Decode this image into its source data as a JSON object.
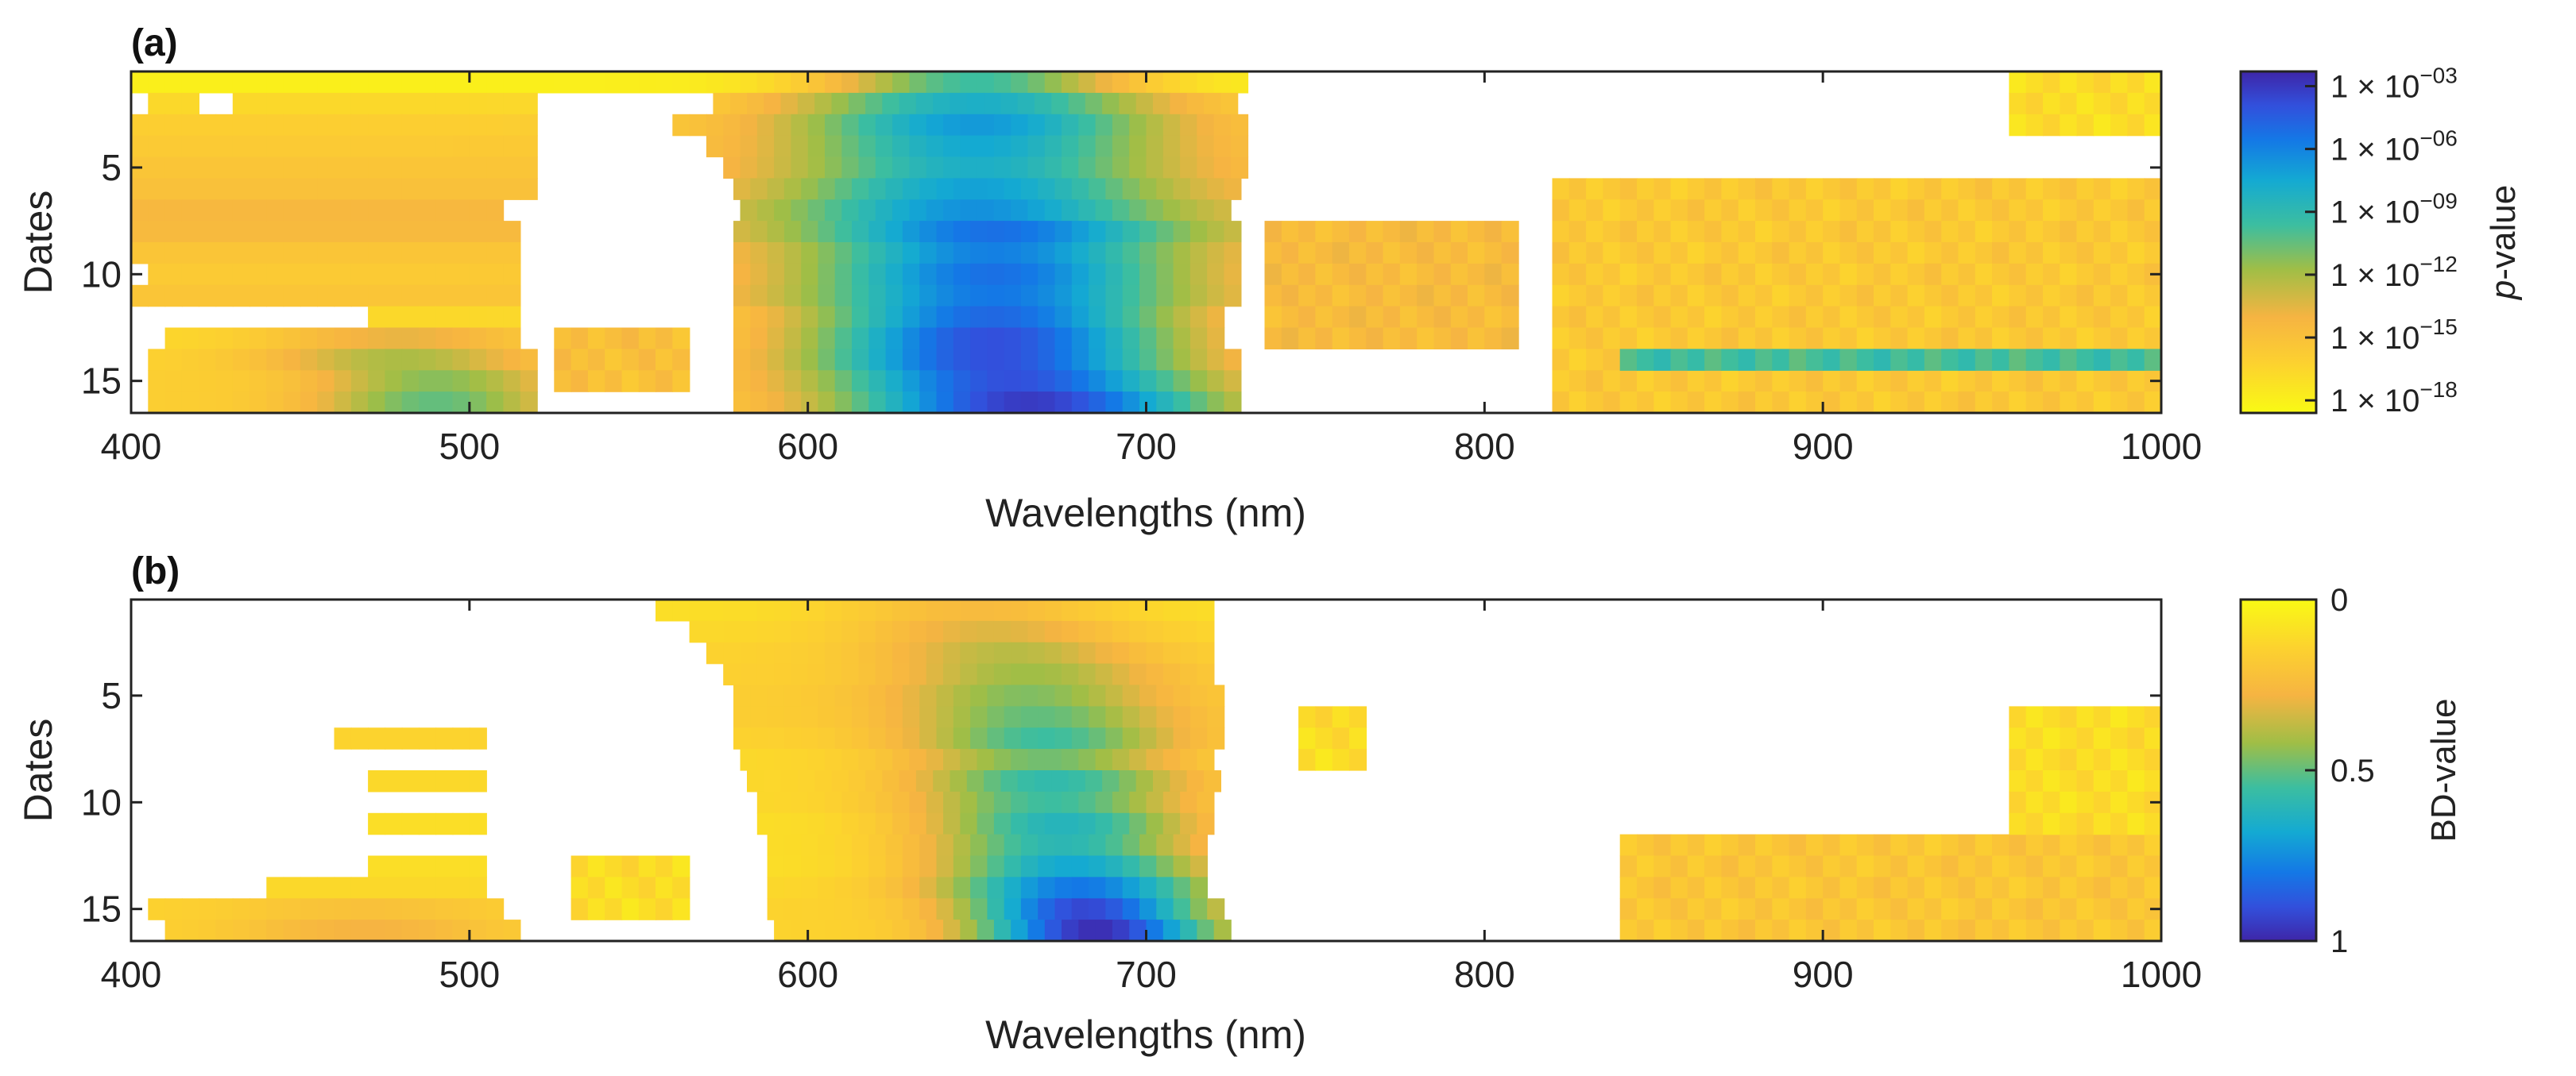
{
  "chart_data": [
    {
      "panel_label": "(a)",
      "type": "heatmap",
      "xlabel": "Wavelengths (nm)",
      "ylabel": "Dates",
      "xlim": [
        400,
        1000
      ],
      "ylim": [
        0.5,
        16.5
      ],
      "x_ticks": [
        400,
        500,
        600,
        700,
        800,
        900,
        1000
      ],
      "x_tick_labels": [
        "400",
        "500",
        "600",
        "700",
        "800",
        "900",
        "1000"
      ],
      "y_ticks": [
        5,
        10,
        15
      ],
      "y_tick_labels": [
        "5",
        "10",
        "15"
      ],
      "colorbar": {
        "label_prefix": "p",
        "label_suffix": "-value",
        "scale": "log",
        "ticks": [
          1e-18,
          1e-15,
          1e-12,
          1e-09,
          1e-06,
          0.001
        ],
        "tick_bases": [
          "1 × 10",
          "1 × 10",
          "1 × 10",
          "1 × 10",
          "1 × 10",
          "1 × 10"
        ],
        "tick_exponents": [
          "−18",
          "−15",
          "−12",
          "−09",
          "−06",
          "−03"
        ],
        "color_min": 0.0,
        "color_max": 1.0
      },
      "rows": [
        {
          "date": 1,
          "segments": [
            [
              400,
              730
            ]
          ],
          "peaks": [
            [
              650,
              0.55,
              45
            ]
          ],
          "base": 0.04
        },
        {
          "date": 2,
          "segments": [
            [
              405,
              420
            ],
            [
              430,
              520
            ],
            [
              572,
              726
            ]
          ],
          "peaks": [
            [
              650,
              0.65,
              55
            ]
          ],
          "base": 0.12
        },
        {
          "date": 3,
          "segments": [
            [
              400,
              520
            ],
            [
              560,
              726
            ]
          ],
          "peaks": [
            [
              650,
              0.72,
              55
            ]
          ],
          "base": 0.16
        },
        {
          "date": 4,
          "segments": [
            [
              400,
              520
            ],
            [
              570,
              726
            ]
          ],
          "peaks": [
            [
              650,
              0.68,
              55
            ]
          ],
          "base": 0.18
        },
        {
          "date": 5,
          "segments": [
            [
              400,
              520
            ],
            [
              575,
              728
            ]
          ],
          "peaks": [
            [
              650,
              0.65,
              55
            ]
          ],
          "base": 0.2
        },
        {
          "date": 6,
          "segments": [
            [
              400,
              520
            ],
            [
              578,
              726
            ]
          ],
          "peaks": [
            [
              650,
              0.7,
              55
            ]
          ],
          "base": 0.22
        },
        {
          "date": 7,
          "segments": [
            [
              400,
              510
            ],
            [
              580,
              724
            ]
          ],
          "peaks": [
            [
              650,
              0.74,
              55
            ]
          ],
          "base": 0.26
        },
        {
          "date": 8,
          "segments": [
            [
              400,
              512
            ],
            [
              578,
              726
            ]
          ],
          "peaks": [
            [
              655,
              0.82,
              55
            ]
          ],
          "base": 0.25
        },
        {
          "date": 9,
          "segments": [
            [
              400,
              512
            ],
            [
              578,
              726
            ]
          ],
          "peaks": [
            [
              655,
              0.78,
              55
            ]
          ],
          "base": 0.2
        },
        {
          "date": 10,
          "segments": [
            [
              405,
              515
            ],
            [
              578,
              724
            ]
          ],
          "peaks": [
            [
              655,
              0.82,
              55
            ]
          ],
          "base": 0.18
        },
        {
          "date": 11,
          "segments": [
            [
              400,
              512
            ],
            [
              578,
              724
            ]
          ],
          "peaks": [
            [
              655,
              0.8,
              55
            ]
          ],
          "base": 0.2
        },
        {
          "date": 12,
          "segments": [
            [
              470,
              515
            ],
            [
              578,
              722
            ]
          ],
          "peaks": [
            [
              655,
              0.84,
              55
            ]
          ],
          "base": 0.12
        },
        {
          "date": 13,
          "segments": [
            [
              410,
              515
            ],
            [
              578,
              722
            ]
          ],
          "peaks": [
            [
              655,
              0.9,
              55
            ],
            [
              480,
              0.3,
              40
            ]
          ],
          "base": 0.12
        },
        {
          "date": 14,
          "segments": [
            [
              405,
              518
            ],
            [
              578,
              724
            ]
          ],
          "peaks": [
            [
              655,
              0.9,
              55
            ],
            [
              480,
              0.4,
              40
            ]
          ],
          "base": 0.14
        },
        {
          "date": 15,
          "segments": [
            [
              405,
              520
            ],
            [
              578,
              726
            ]
          ],
          "peaks": [
            [
              660,
              0.9,
              55
            ],
            [
              490,
              0.45,
              35
            ]
          ],
          "base": 0.16
        },
        {
          "date": 16,
          "segments": [
            [
              405,
              520
            ],
            [
              578,
              726
            ]
          ],
          "peaks": [
            [
              665,
              0.95,
              55
            ],
            [
              490,
              0.5,
              35
            ]
          ],
          "base": 0.16
        }
      ],
      "extra_blocks": [
        {
          "dates": [
            13,
            15
          ],
          "from": 525,
          "to": 565,
          "level": 0.18
        },
        {
          "dates": [
            8,
            13
          ],
          "from": 735,
          "to": 810,
          "level": 0.2
        },
        {
          "dates": [
            6,
            16
          ],
          "from": 820,
          "to": 1000,
          "level": 0.14
        },
        {
          "dates": [
            14,
            14
          ],
          "from": 840,
          "to": 1000,
          "level": 0.5
        },
        {
          "dates": [
            1,
            3
          ],
          "from": 955,
          "to": 1000,
          "level": 0.06
        }
      ]
    },
    {
      "panel_label": "(b)",
      "type": "heatmap",
      "xlabel": "Wavelengths (nm)",
      "ylabel": "Dates",
      "xlim": [
        400,
        1000
      ],
      "ylim": [
        0.5,
        16.5
      ],
      "x_ticks": [
        400,
        500,
        600,
        700,
        800,
        900,
        1000
      ],
      "x_tick_labels": [
        "400",
        "500",
        "600",
        "700",
        "800",
        "900",
        "1000"
      ],
      "y_ticks": [
        5,
        10,
        15
      ],
      "y_tick_labels": [
        "5",
        "10",
        "15"
      ],
      "colorbar": {
        "label": "BD-value",
        "scale": "linear",
        "ticks": [
          0,
          0.5,
          1
        ],
        "tick_labels": [
          "0",
          "0.5",
          "1"
        ],
        "color_min": 0.0,
        "color_max": 1.0
      },
      "rows": [
        {
          "date": 1,
          "segments": [
            [
              555,
              720
            ]
          ],
          "peaks": [
            [
              650,
              0.25,
              40
            ]
          ],
          "base": 0.1
        },
        {
          "date": 2,
          "segments": [
            [
              565,
              718
            ]
          ],
          "peaks": [
            [
              655,
              0.32,
              40
            ]
          ],
          "base": 0.12
        },
        {
          "date": 3,
          "segments": [
            [
              570,
              718
            ]
          ],
          "peaks": [
            [
              660,
              0.38,
              40
            ]
          ],
          "base": 0.14
        },
        {
          "date": 4,
          "segments": [
            [
              575,
              718
            ]
          ],
          "peaks": [
            [
              665,
              0.42,
              40
            ]
          ],
          "base": 0.15
        },
        {
          "date": 5,
          "segments": [
            [
              578,
              720
            ]
          ],
          "peaks": [
            [
              665,
              0.46,
              40
            ]
          ],
          "base": 0.16
        },
        {
          "date": 6,
          "segments": [
            [
              578,
              720
            ]
          ],
          "peaks": [
            [
              668,
              0.5,
              40
            ]
          ],
          "base": 0.16
        },
        {
          "date": 7,
          "segments": [
            [
              460,
              505
            ],
            [
              578,
              720
            ]
          ],
          "peaks": [
            [
              670,
              0.55,
              40
            ]
          ],
          "base": 0.14
        },
        {
          "date": 8,
          "segments": [
            [
              580,
              718
            ]
          ],
          "peaks": [
            [
              670,
              0.48,
              40
            ]
          ],
          "base": 0.12
        },
        {
          "date": 9,
          "segments": [
            [
              470,
              505
            ],
            [
              582,
              718
            ]
          ],
          "peaks": [
            [
              672,
              0.58,
              40
            ]
          ],
          "base": 0.12
        },
        {
          "date": 10,
          "segments": [
            [
              585,
              716
            ]
          ],
          "peaks": [
            [
              672,
              0.55,
              40
            ]
          ],
          "base": 0.12
        },
        {
          "date": 11,
          "segments": [
            [
              470,
              505
            ],
            [
              585,
              716
            ]
          ],
          "peaks": [
            [
              675,
              0.62,
              40
            ]
          ],
          "base": 0.1
        },
        {
          "date": 12,
          "segments": [
            [
              588,
              716
            ]
          ],
          "peaks": [
            [
              675,
              0.6,
              40
            ]
          ],
          "base": 0.1
        },
        {
          "date": 13,
          "segments": [
            [
              470,
              505
            ],
            [
              588,
              716
            ]
          ],
          "peaks": [
            [
              678,
              0.68,
              40
            ]
          ],
          "base": 0.1
        },
        {
          "date": 14,
          "segments": [
            [
              440,
              505
            ],
            [
              588,
              718
            ]
          ],
          "peaks": [
            [
              680,
              0.8,
              40
            ]
          ],
          "base": 0.12
        },
        {
          "date": 15,
          "segments": [
            [
              405,
              510
            ],
            [
              588,
              720
            ]
          ],
          "peaks": [
            [
              682,
              0.92,
              35
            ],
            [
              470,
              0.22,
              40
            ]
          ],
          "base": 0.14
        },
        {
          "date": 16,
          "segments": [
            [
              410,
              512
            ],
            [
              590,
              722
            ]
          ],
          "peaks": [
            [
              685,
              0.98,
              35
            ],
            [
              470,
              0.28,
              40
            ]
          ],
          "base": 0.14
        }
      ],
      "extra_blocks": [
        {
          "dates": [
            13,
            15
          ],
          "from": 530,
          "to": 562,
          "level": 0.06
        },
        {
          "dates": [
            6,
            8
          ],
          "from": 745,
          "to": 765,
          "level": 0.06
        },
        {
          "dates": [
            12,
            16
          ],
          "from": 840,
          "to": 1000,
          "level": 0.15
        },
        {
          "dates": [
            6,
            11
          ],
          "from": 955,
          "to": 1000,
          "level": 0.06
        }
      ]
    }
  ]
}
